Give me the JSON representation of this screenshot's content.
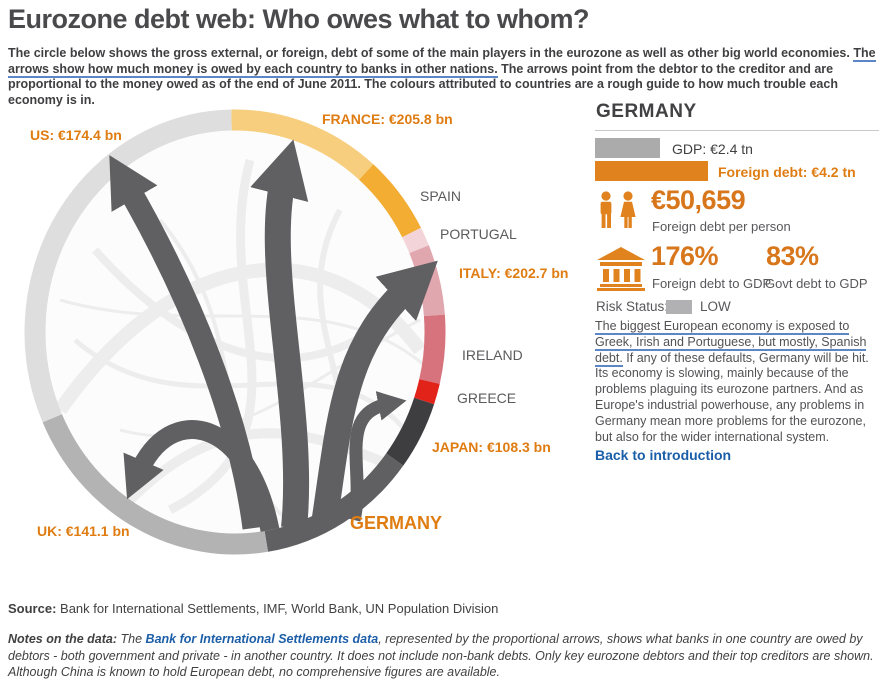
{
  "page": {
    "title": "Eurozone debt web: Who owes what to whom?",
    "intro_pre": "The circle below shows the gross external, or foreign, debt of some of the main players in the eurozone as well as other big world economies. ",
    "intro_underlined": "The arrows show how much money is owed by each country to banks in other nations.",
    "intro_post": " The arrows point from the debtor to the creditor and are proportional to the money owed as of the end of June 2011. The colours attributed to countries are a rough guide to how much trouble each economy is in."
  },
  "diagram": {
    "selected_country": "GERMANY",
    "arrow_color": "#606062",
    "segments": [
      {
        "id": "france",
        "label": "FRANCE: €205.8 bn",
        "color": "#f6ce7e",
        "start": -1,
        "end": 41,
        "has_amount": true
      },
      {
        "id": "spain",
        "label": "SPAIN",
        "color": "#f2ad32",
        "start": 41,
        "end": 62,
        "has_amount": false
      },
      {
        "id": "portugal",
        "label": "PORTUGAL",
        "color": "#f3d4d8",
        "start": 62,
        "end": 67,
        "has_amount": false
      },
      {
        "id": "italy",
        "label": "ITALY: €202.7 bn",
        "color": "#e0a7af",
        "start": 67,
        "end": 85.5,
        "has_amount": true
      },
      {
        "id": "ireland",
        "label": "IRELAND",
        "color": "#d6737d",
        "start": 85.5,
        "end": 103.5,
        "has_amount": false
      },
      {
        "id": "greece",
        "label": "GREECE",
        "color": "#e2231a",
        "start": 103.5,
        "end": 109,
        "has_amount": false
      },
      {
        "id": "japan",
        "label": "JAPAN: €108.3 bn",
        "color": "#3e3e40",
        "start": 109,
        "end": 127,
        "has_amount": true
      },
      {
        "id": "germany",
        "label": "GERMANY",
        "color": "#606062",
        "start": 127,
        "end": 171,
        "has_amount": false
      },
      {
        "id": "uk",
        "label": "UK: €141.1 bn",
        "color": "#b3b3b4",
        "start": 171,
        "end": 246,
        "has_amount": true
      },
      {
        "id": "us",
        "label": "US: €174.4 bn",
        "color": "#dedede",
        "start": 246,
        "end": 359,
        "has_amount": true
      }
    ],
    "arrows": [
      {
        "from": "germany",
        "target": "us",
        "amount_bn": 174.4
      },
      {
        "from": "germany",
        "target": "france",
        "amount_bn": 205.8
      },
      {
        "from": "germany",
        "target": "italy",
        "amount_bn": 202.7
      },
      {
        "from": "germany",
        "target": "japan",
        "amount_bn": 108.3
      },
      {
        "from": "germany",
        "target": "uk",
        "amount_bn": 141.1
      }
    ]
  },
  "panel": {
    "title": "GERMANY",
    "gdp_tn": 2.4,
    "foreign_debt_tn": 4.2,
    "gdp_label": "GDP: €2.4 tn",
    "foreign_debt_label": "Foreign debt: €4.2 tn",
    "per_person_value": "€50,659",
    "per_person_label": "Foreign debt per person",
    "foreign_debt_to_gdp_value": "176%",
    "foreign_debt_to_gdp_label": "Foreign debt to GDP",
    "govt_debt_to_gdp_value": "83%",
    "govt_debt_to_gdp_label": "Govt debt to GDP",
    "risk_label": "Risk Status:",
    "risk_value": "LOW",
    "risk_color": "#b1b1b3",
    "description_underlined": "The biggest European economy is exposed to Greek, Irish and Portuguese, but mostly, Spanish debt.",
    "description_rest": " If any of these defaults, Germany will be hit. Its economy is slowing, mainly because of the problems plaguing its eurozone partners. And as Europe's industrial powerhouse, any problems in Germany mean more problems for the eurozone, but also for the wider international system.",
    "back_link": "Back to introduction"
  },
  "footer": {
    "source_label": "Source:",
    "source_text": " Bank for International Settlements, IMF, World Bank, UN Population Division",
    "notes_label": "Notes on the data:",
    "notes_pre": " The ",
    "notes_link": "Bank for International Settlements data",
    "notes_post": ", represented by the proportional arrows, shows what banks in one country are owed by debtors - both government and private - in another country. It does not include non-bank debts. Only key eurozone debtors and their top creditors are shown. Although China is known to hold European debt, no comprehensive figures are available."
  },
  "colors": {
    "accent_orange": "#df7c12",
    "link_blue": "#1b5ea8",
    "underline_blue": "#5c86c5",
    "heading_gray": "#4a4a4c"
  }
}
